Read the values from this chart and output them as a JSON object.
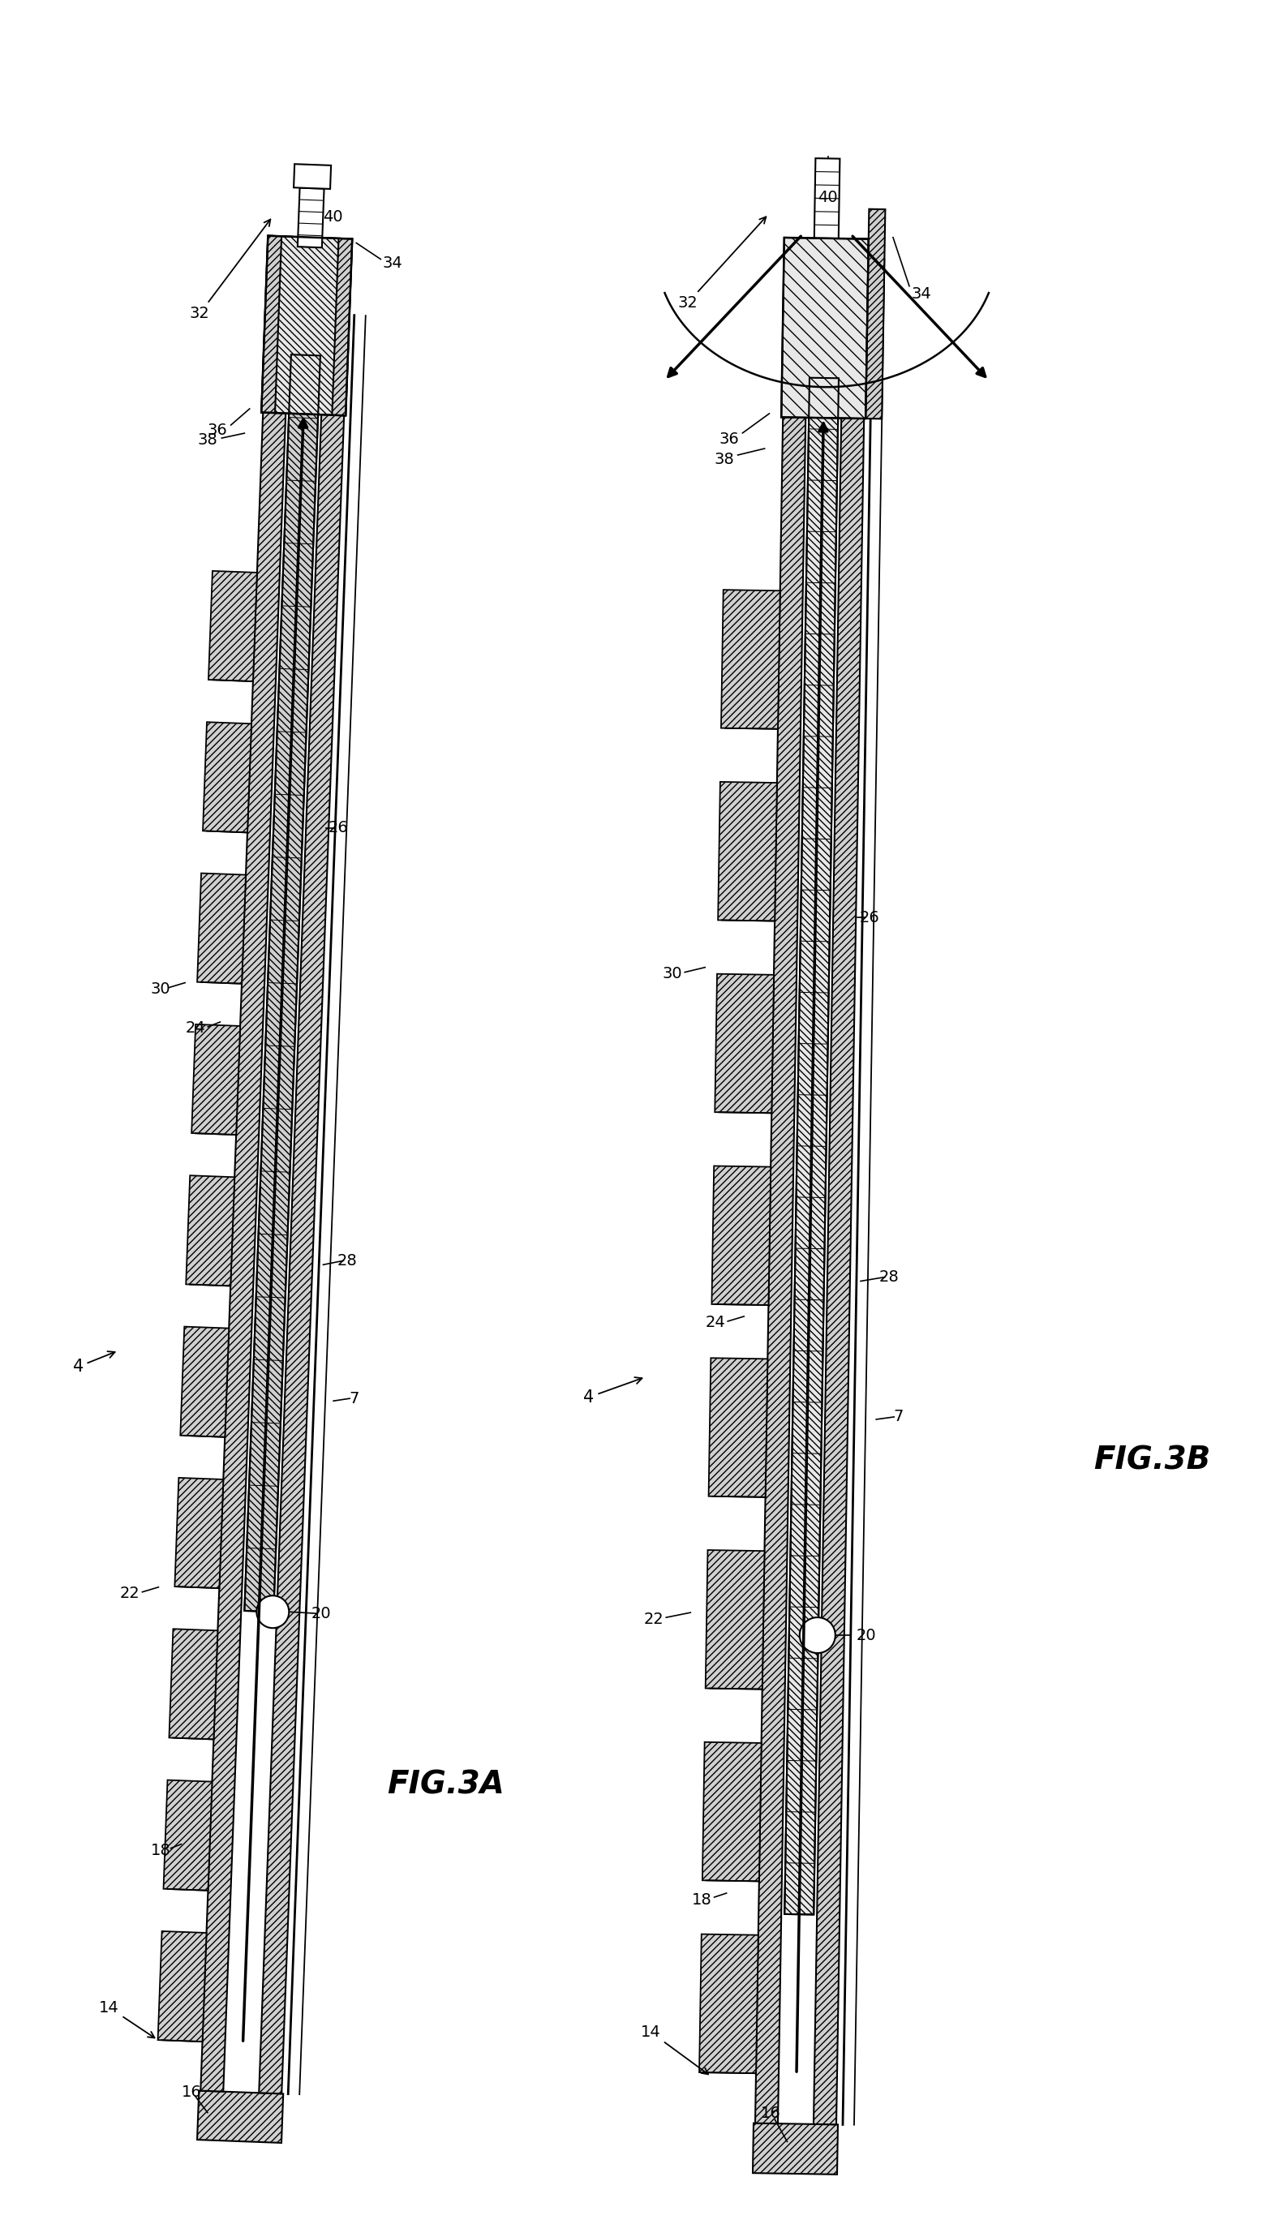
{
  "fig_width": 15.62,
  "fig_height": 27.58,
  "bg_color": "#ffffff",
  "fig3a_label": "FIG.3A",
  "fig3b_label": "FIG.3B"
}
